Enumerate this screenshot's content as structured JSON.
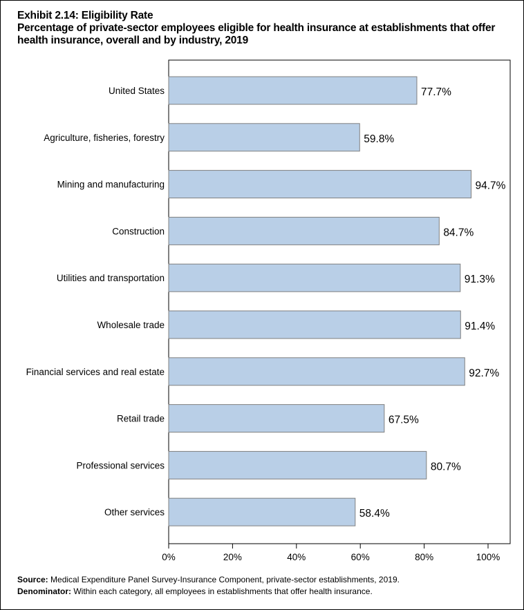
{
  "chart_data": {
    "type": "bar",
    "orientation": "horizontal",
    "title": "Exhibit 2.14: Eligibility Rate",
    "subtitle": "Percentage of private-sector employees eligible for health insurance at establishments that offer health insurance, overall and by industry, 2019",
    "categories": [
      "United States",
      "Agriculture, fisheries, forestry",
      "Mining and manufacturing",
      "Construction",
      "Utilities and transportation",
      "Wholesale trade",
      "Financial services and real estate",
      "Retail trade",
      "Professional services",
      "Other services"
    ],
    "values": [
      77.7,
      59.8,
      94.7,
      84.7,
      91.3,
      91.4,
      92.7,
      67.5,
      80.7,
      58.4
    ],
    "data_labels": [
      "77.7%",
      "59.8%",
      "94.7%",
      "84.7%",
      "91.3%",
      "91.4%",
      "92.7%",
      "67.5%",
      "80.7%",
      "58.4%"
    ],
    "xticks": [
      0,
      20,
      40,
      60,
      80,
      100
    ],
    "xtick_labels": [
      "0%",
      "20%",
      "40%",
      "60%",
      "80%",
      "100%"
    ],
    "xlim": [
      0,
      107
    ],
    "xlabel": "",
    "ylabel": "",
    "grid": false,
    "bar_color": "#b9cfe7",
    "bar_edge_color": "#7f7f7f"
  },
  "footnotes": {
    "source_label": "Source:",
    "source_text": " Medical Expenditure Panel Survey-Insurance Component, private-sector establishments, 2019.",
    "denominator_label": "Denominator:",
    "denominator_text": " Within each category, all employees in establishments that offer health insurance."
  }
}
